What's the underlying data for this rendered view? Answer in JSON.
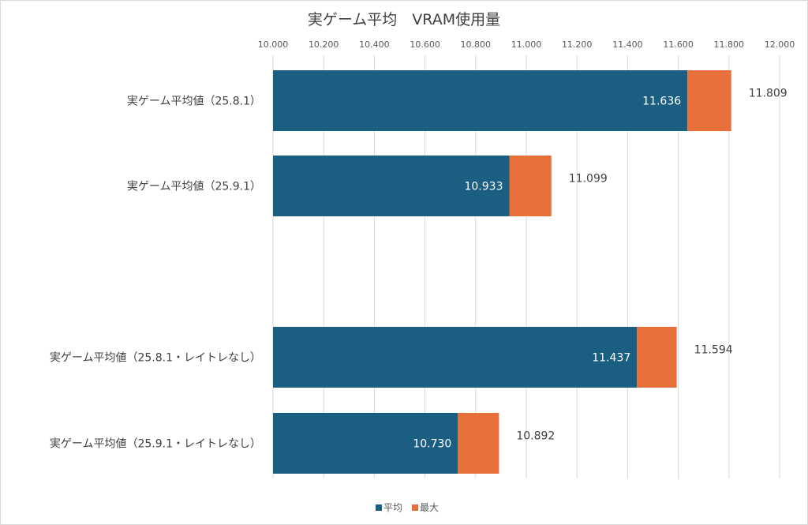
{
  "chart_data": {
    "type": "bar",
    "orientation": "horizontal",
    "title": "実ゲーム平均　VRAM使用量",
    "xlim": [
      10.0,
      12.0
    ],
    "x_ticks": [
      "10.000",
      "10.200",
      "10.400",
      "10.600",
      "10.800",
      "11.000",
      "11.200",
      "11.400",
      "11.600",
      "11.800",
      "12.000"
    ],
    "grid": true,
    "legend_position": "bottom",
    "categories": [
      "実ゲーム平均値（25.8.1）",
      "実ゲーム平均値（25.9.1）",
      "",
      "実ゲーム平均値（25.8.1・レイトレなし）",
      "実ゲーム平均値（25.9.1・レイトレなし）"
    ],
    "series": [
      {
        "name": "平均",
        "color": "#1a5e82",
        "values": [
          11.636,
          10.933,
          null,
          11.437,
          10.73
        ],
        "labels": [
          "11.636",
          "10.933",
          "",
          "11.437",
          "10.730"
        ]
      },
      {
        "name": "最大",
        "color": "#e8703a",
        "values": [
          11.809,
          11.099,
          null,
          11.594,
          10.892
        ],
        "labels": [
          "11.809",
          "11.099",
          "",
          "11.594",
          "10.892"
        ]
      }
    ]
  }
}
